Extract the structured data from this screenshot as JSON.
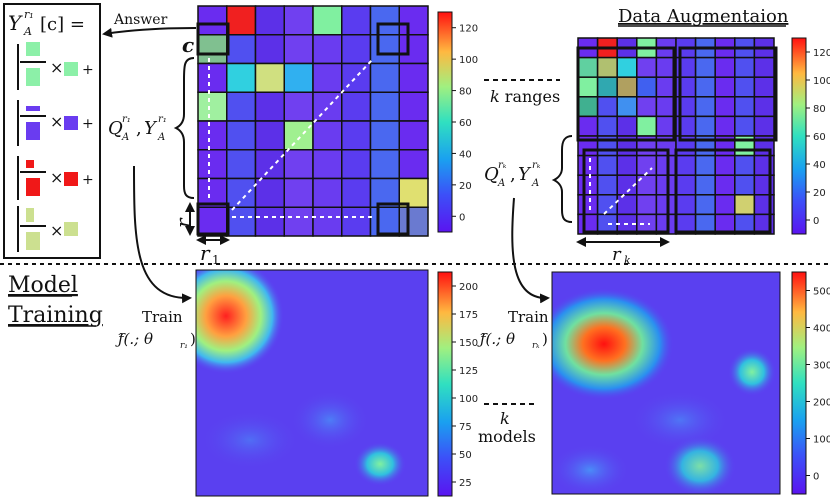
{
  "labels": {
    "answer": "Answer",
    "cell_c": "c",
    "r1_side": "r",
    "r1_bottom": "r",
    "r1_sub": "1",
    "rk_bottom": "r",
    "rk_sub": "k",
    "q_r1": "Q",
    "q_r1_sub": "A",
    "q_r1_sup": "r₁",
    "y_r1": "Y",
    "y_r1_sub": "A",
    "y_r1_sup": "r₁",
    "q_rk": "Q",
    "q_rk_sub": "A",
    "q_rk_sup": "rₖ",
    "y_rk": "Y",
    "y_rk_sub": "A",
    "y_rk_sup": "rₖ",
    "data_augmentation": "Data Augmentaion",
    "k_ranges_k": "k",
    "k_ranges_text": " ranges",
    "model_training_1": "Model",
    "model_training_2": "Training",
    "train_1": "Train",
    "train_1_f": "ƒ̂(.; θ",
    "train_1_sub": "r₁",
    "train_1_close": ")",
    "train_k": "Train",
    "train_k_f": "ƒ̂(.; θ",
    "train_k_sub": "rₖ",
    "train_k_close": ")",
    "k_models_k": "k",
    "k_models_text": "models",
    "formula_title": "Y",
    "formula_sub": "A",
    "formula_sup": "r₁",
    "formula_rest": "[c] =",
    "times": "×",
    "plus": "+"
  },
  "colorbars": {
    "top_left": [
      "0",
      "20",
      "40",
      "60",
      "80",
      "100",
      "120"
    ],
    "top_right": [
      "0",
      "20",
      "40",
      "60",
      "80",
      "100",
      "120"
    ],
    "bottom_left": [
      "25",
      "50",
      "75",
      "100",
      "125",
      "150",
      "175",
      "200"
    ],
    "bottom_right": [
      "0",
      "100",
      "200",
      "300",
      "400",
      "500"
    ]
  },
  "colors": {
    "line": "#111111",
    "dashed": "#ffffff",
    "purple": "#6f3cf0",
    "green_light": "#8cf0a8",
    "blue_violet": "#6a3cf0",
    "red": "#f01818",
    "yellow_green": "#cce090"
  }
}
